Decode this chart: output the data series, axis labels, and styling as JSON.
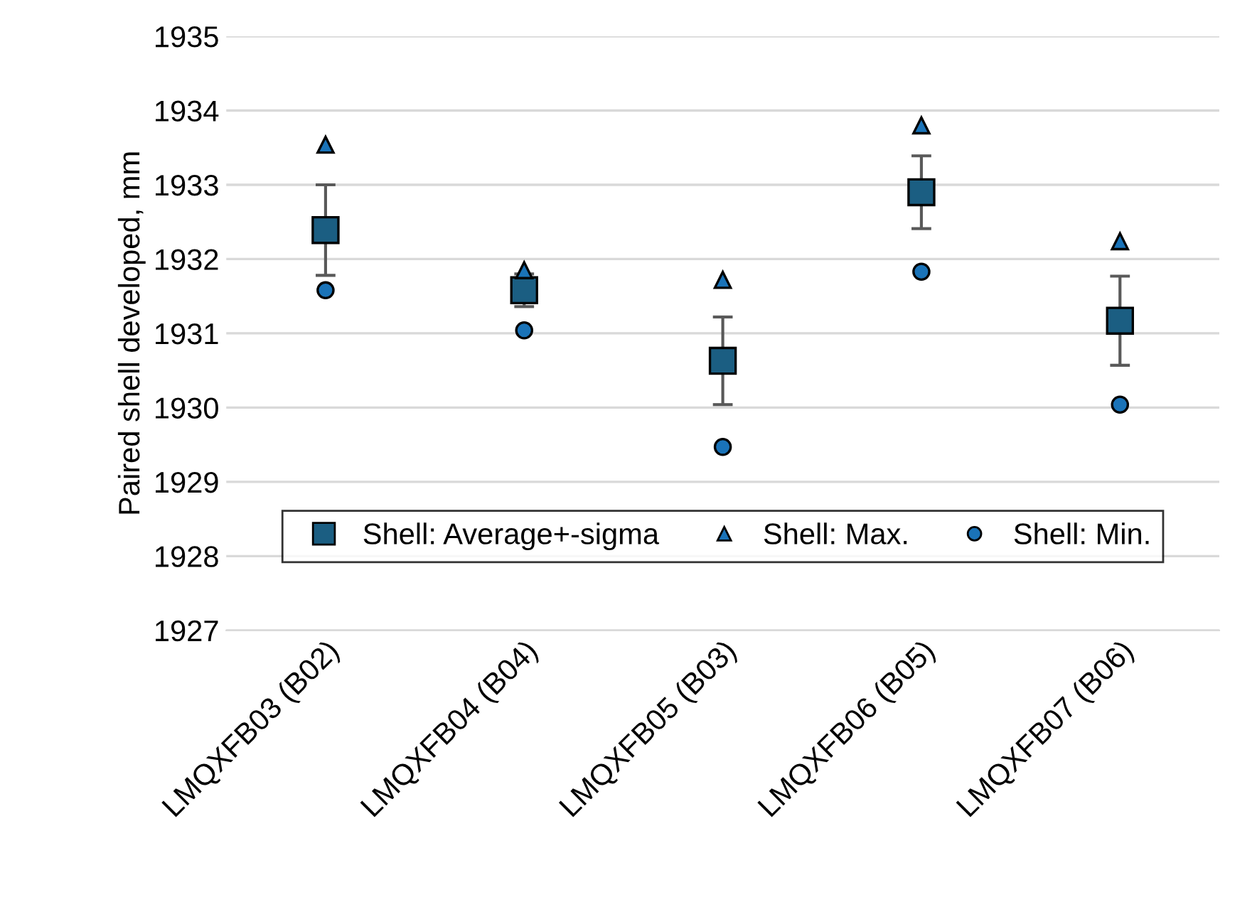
{
  "chart_data": {
    "type": "scatter",
    "ylabel": "Paired shell developed, mm",
    "categories": [
      "LMQXFB03 (B02)",
      "LMQXFB04 (B04)",
      "LMQXFB05 (B03)",
      "LMQXFB06 (B05)",
      "LMQXFB07 (B06)"
    ],
    "series": [
      {
        "name": "Shell: Average+-sigma",
        "color": "#1b5e82",
        "marker": "square",
        "values": [
          1932.39,
          1931.58,
          1930.63,
          1932.9,
          1931.17
        ],
        "errors": [
          0.61,
          0.22,
          0.59,
          0.49,
          0.6
        ]
      },
      {
        "name": "Shell: Max.",
        "color": "#1a73b8",
        "marker": "triangle",
        "values": [
          1933.54,
          1931.85,
          1931.72,
          1933.8,
          1932.24
        ]
      },
      {
        "name": "Shell: Min.",
        "color": "#1a73b8",
        "marker": "circle",
        "values": [
          1931.58,
          1931.04,
          1929.47,
          1931.83,
          1930.04
        ]
      }
    ],
    "ylim": [
      1927,
      1935
    ],
    "yticks": [
      1927,
      1928,
      1929,
      1930,
      1931,
      1932,
      1933,
      1934,
      1935
    ],
    "grid": "y",
    "legend": "bottom"
  }
}
